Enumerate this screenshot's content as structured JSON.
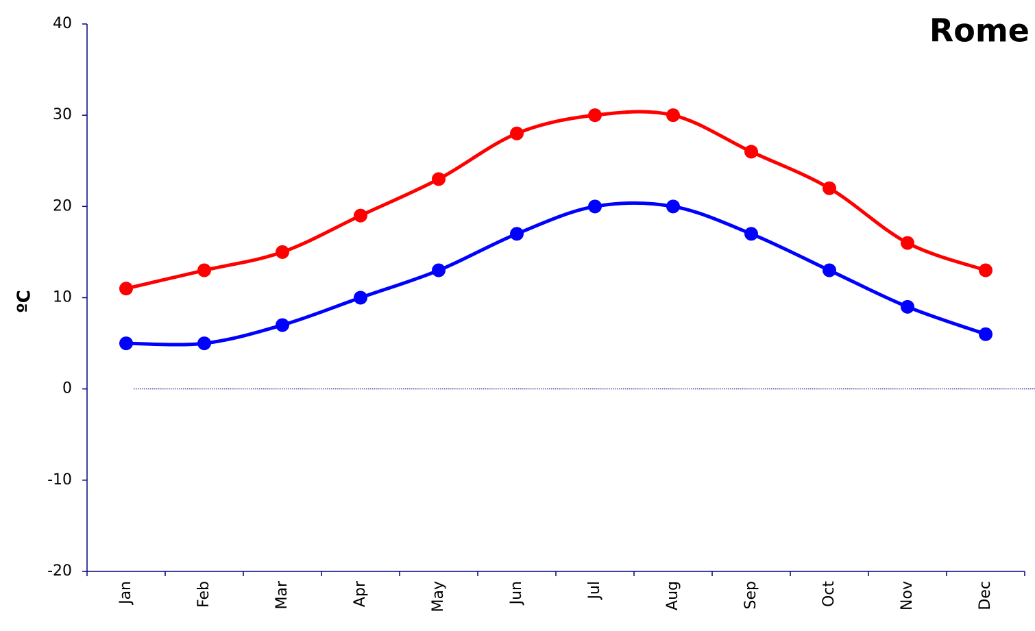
{
  "chart_data": {
    "type": "line",
    "title": "Rome",
    "ylabel": "ºC",
    "categories": [
      "Jan",
      "Feb",
      "Mar",
      "Apr",
      "May",
      "Jun",
      "Jul",
      "Aug",
      "Sep",
      "Oct",
      "Nov",
      "Dec"
    ],
    "series": [
      {
        "color": "#ff0000",
        "values": [
          11,
          13,
          15,
          19,
          23,
          28,
          30,
          30,
          26,
          22,
          16,
          13
        ]
      },
      {
        "color": "#0000ff",
        "values": [
          5,
          5,
          7,
          10,
          13,
          17,
          20,
          20,
          17,
          13,
          9,
          6
        ]
      }
    ],
    "ylim": [
      -20,
      40
    ],
    "yticks": [
      -20,
      -10,
      0,
      10,
      20,
      30,
      40
    ],
    "hline": 0,
    "smooth": true
  }
}
